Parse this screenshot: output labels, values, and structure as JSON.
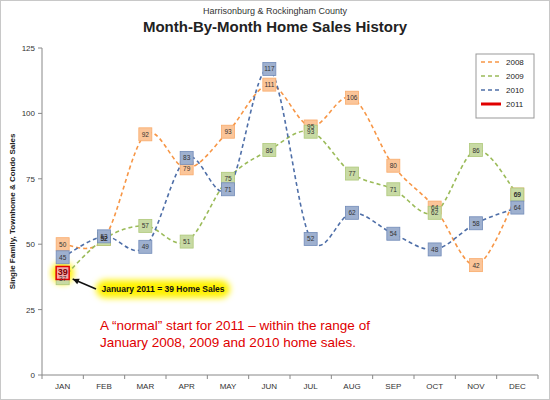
{
  "chart_data": {
    "type": "line",
    "subtitle": "Harrisonburg & Rockingham County",
    "title": "Month-By-Month Home Sales History",
    "y_label": "Single Family, Townhome & Condo Sales",
    "categories": [
      "JAN",
      "FEB",
      "MAR",
      "APR",
      "MAY",
      "JUN",
      "JUL",
      "AUG",
      "SEP",
      "OCT",
      "NOV",
      "DEC"
    ],
    "series": [
      {
        "name": "2008",
        "color": "#f79646",
        "line_style": "dashed",
        "marker": "square",
        "values": [
          50,
          52,
          92,
          79,
          93,
          111,
          95,
          106,
          80,
          64,
          42,
          69
        ]
      },
      {
        "name": "2009",
        "color": "#9bbb59",
        "line_style": "dashed",
        "marker": "square",
        "values": [
          37,
          52,
          57,
          51,
          75,
          86,
          93,
          77,
          71,
          62,
          86,
          69
        ]
      },
      {
        "name": "2010",
        "color": "#4f6fa8",
        "line_style": "dashed",
        "marker": "square",
        "values": [
          45,
          53,
          49,
          83,
          71,
          117,
          52,
          62,
          54,
          48,
          58,
          64
        ]
      },
      {
        "name": "2011",
        "color": "#e00000",
        "line_style": "solid",
        "marker": "square",
        "values": [
          39,
          null,
          null,
          null,
          null,
          null,
          null,
          null,
          null,
          null,
          null,
          null
        ]
      }
    ],
    "ylim": [
      0,
      125
    ],
    "yticks": [
      0,
      25,
      50,
      75,
      100,
      125
    ],
    "grid": false,
    "legend": "top-right",
    "data_labels": true,
    "callout": "January 2011 = 39 Home Sales",
    "note": [
      "A “normal” start for 2011 – within the range of",
      "January 2008, 2009 and 2010 home sales."
    ]
  }
}
